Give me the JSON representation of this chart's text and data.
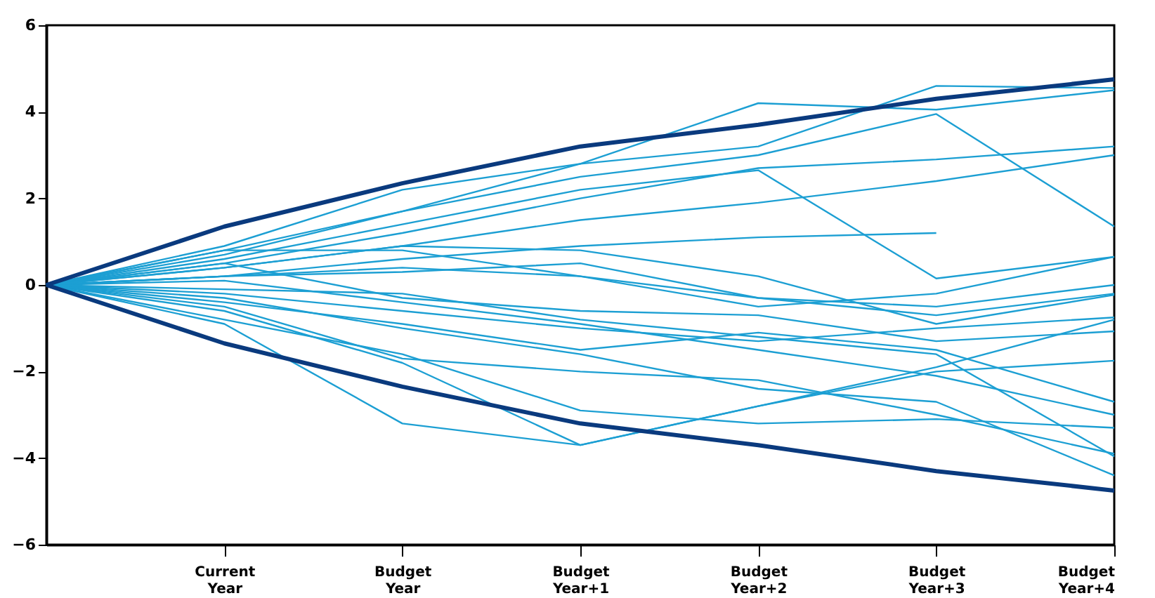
{
  "chart_data": {
    "type": "line",
    "categories": [
      null,
      "Current Year",
      "Budget Year",
      "Budget Year+1",
      "Budget Year+2",
      "Budget Year+3",
      "Budget Year+4"
    ],
    "ylim": [
      -6,
      6
    ],
    "yticks": [
      -6,
      -4,
      -2,
      0,
      2,
      4,
      6
    ],
    "grid": false,
    "legend": false,
    "series": [
      {
        "color": "#1c9fd3",
        "values": [
          0,
          0.8,
          1.7,
          2.8,
          4.2,
          4.05,
          4.5
        ]
      },
      {
        "color": "#1c9fd3",
        "values": [
          0,
          0.9,
          2.2,
          2.8,
          3.2,
          4.6,
          4.55
        ]
      },
      {
        "color": "#1c9fd3",
        "values": [
          0,
          0.7,
          1.7,
          2.5,
          3.0,
          3.95,
          1.35
        ]
      },
      {
        "color": "#1c9fd3",
        "values": [
          0,
          0.5,
          1.2,
          2.0,
          2.7,
          2.9,
          3.2
        ]
      },
      {
        "color": "#1c9fd3",
        "values": [
          0,
          0.4,
          0.9,
          1.5,
          1.9,
          2.4,
          3.0
        ]
      },
      {
        "color": "#1c9fd3",
        "values": [
          0,
          0.6,
          1.4,
          2.2,
          2.65,
          0.15,
          0.65
        ]
      },
      {
        "color": "#1c9fd3",
        "values": [
          0,
          0.2,
          0.6,
          0.9,
          1.1,
          1.2,
          null
        ]
      },
      {
        "color": "#1c9fd3",
        "values": [
          0,
          0.8,
          0.8,
          0.2,
          -0.5,
          -0.2,
          0.65
        ]
      },
      {
        "color": "#1c9fd3",
        "values": [
          0,
          0.2,
          0.3,
          0.5,
          -0.3,
          -0.7,
          -0.2
        ]
      },
      {
        "color": "#1c9fd3",
        "values": [
          0,
          -0.6,
          -1.8,
          -3.7,
          -2.8,
          -2.0,
          -1.75
        ]
      },
      {
        "color": "#1c9fd3",
        "values": [
          0,
          -0.9,
          -3.2,
          -3.7,
          -2.8,
          -1.9,
          -0.8
        ]
      },
      {
        "color": "#1c9fd3",
        "values": [
          0,
          -0.5,
          -1.7,
          -2.0,
          -2.2,
          -3.0,
          -3.9
        ]
      },
      {
        "color": "#1c9fd3",
        "values": [
          0,
          -0.8,
          -1.6,
          -2.9,
          -3.2,
          -3.1,
          -3.3
        ]
      },
      {
        "color": "#1c9fd3",
        "values": [
          0,
          -0.3,
          -1.0,
          -1.6,
          -2.4,
          -2.7,
          -4.4
        ]
      },
      {
        "color": "#1c9fd3",
        "values": [
          0,
          -0.4,
          -0.9,
          -1.5,
          -1.1,
          -1.5,
          -2.7
        ]
      },
      {
        "color": "#1c9fd3",
        "values": [
          0,
          0.1,
          -0.4,
          -0.9,
          -1.5,
          -2.1,
          -3.0
        ]
      },
      {
        "color": "#1c9fd3",
        "values": [
          0,
          -0.2,
          -0.6,
          -1.0,
          -1.3,
          -1.0,
          -0.75
        ]
      },
      {
        "color": "#1c9fd3",
        "values": [
          0,
          0.5,
          -0.3,
          -0.6,
          -0.7,
          -1.3,
          -1.07
        ]
      },
      {
        "color": "#1c9fd3",
        "values": [
          0,
          0.2,
          0.4,
          0.2,
          -0.3,
          -0.5,
          0.0
        ]
      },
      {
        "color": "#1c9fd3",
        "values": [
          0,
          -0.1,
          -0.2,
          -0.8,
          -1.2,
          -1.6,
          -3.96
        ]
      },
      {
        "color": "#1c9fd3",
        "values": [
          0,
          0.4,
          0.9,
          0.8,
          0.2,
          -0.9,
          -0.23
        ]
      },
      {
        "color": "#0a3a7e",
        "values": [
          0,
          1.35,
          2.35,
          3.2,
          3.7,
          4.3,
          4.75
        ]
      },
      {
        "color": "#0a3a7e",
        "values": [
          0,
          -1.35,
          -2.35,
          -3.2,
          -3.7,
          -4.3,
          -4.75
        ]
      }
    ]
  }
}
